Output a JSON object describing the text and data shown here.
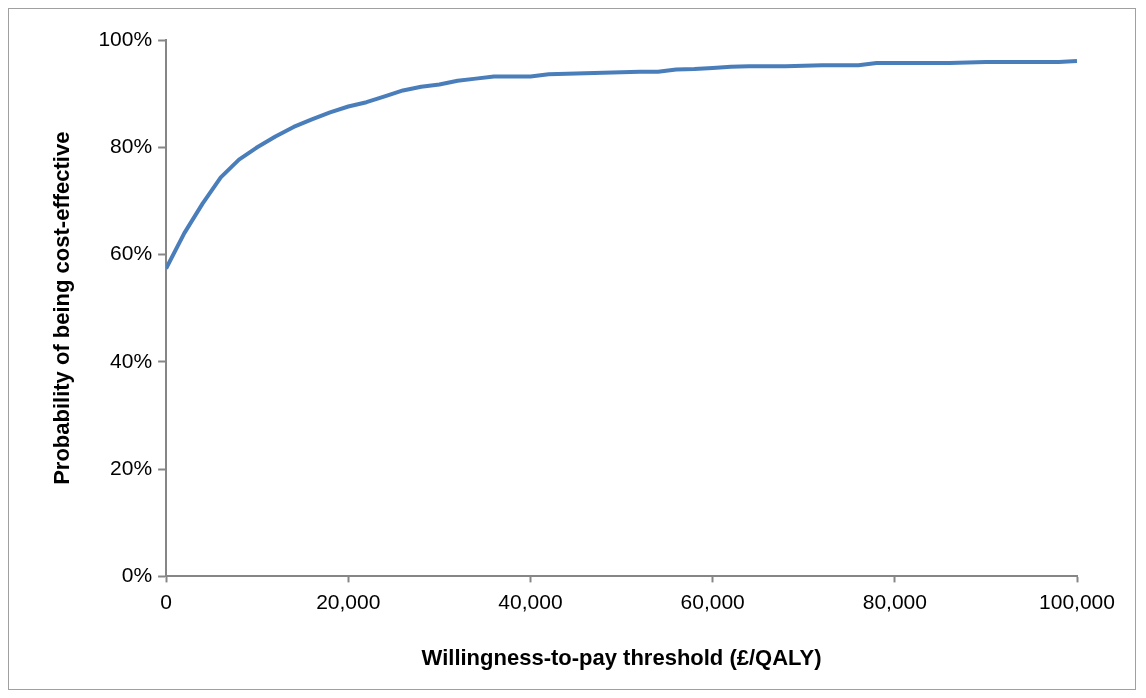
{
  "chart_data": {
    "type": "line",
    "xlabel": "Willingness-to-pay threshold (£/QALY)",
    "ylabel": "Probability of being cost-effective",
    "x": [
      0,
      2000,
      4000,
      6000,
      8000,
      10000,
      12000,
      14000,
      16000,
      18000,
      20000,
      22000,
      24000,
      26000,
      28000,
      30000,
      32000,
      34000,
      36000,
      38000,
      40000,
      42000,
      44000,
      46000,
      48000,
      50000,
      52000,
      54000,
      56000,
      58000,
      60000,
      62000,
      64000,
      66000,
      68000,
      70000,
      72000,
      74000,
      76000,
      78000,
      80000,
      82000,
      84000,
      86000,
      88000,
      90000,
      92000,
      94000,
      96000,
      98000,
      100000
    ],
    "series": [
      {
        "color": "#4a7ebb",
        "values": [
          57.4,
          64,
          69.5,
          74.4,
          77.7,
          80,
          82,
          83.8,
          85.2,
          86.5,
          87.6,
          88.4,
          89.5,
          90.6,
          91.3,
          91.7,
          92.4,
          92.8,
          93.2,
          93.2,
          93.2,
          93.6,
          93.7,
          93.8,
          93.9,
          94,
          94.1,
          94.1,
          94.5,
          94.6,
          94.8,
          95,
          95.1,
          95.1,
          95.1,
          95.2,
          95.3,
          95.3,
          95.3,
          95.7,
          95.7,
          95.7,
          95.7,
          95.7,
          95.8,
          95.9,
          95.9,
          95.9,
          95.9,
          95.9,
          96.1
        ]
      }
    ],
    "xlim": [
      0,
      100000
    ],
    "xticks": [
      {
        "value": 0,
        "label": "0"
      },
      {
        "value": 20000,
        "label": "20,000"
      },
      {
        "value": 40000,
        "label": "40,000"
      },
      {
        "value": 60000,
        "label": "60,000"
      },
      {
        "value": 80000,
        "label": "80,000"
      },
      {
        "value": 100000,
        "label": "100,000"
      }
    ],
    "ylim": [
      0,
      100
    ],
    "yticks": [
      {
        "value": 0,
        "label": "0%"
      },
      {
        "value": 20,
        "label": "20%"
      },
      {
        "value": 40,
        "label": "40%"
      },
      {
        "value": 60,
        "label": "60%"
      },
      {
        "value": 80,
        "label": "80%"
      },
      {
        "value": 100,
        "label": "100%"
      }
    ],
    "grid": false,
    "legend": false,
    "marker": "none",
    "line_style": "solid"
  }
}
